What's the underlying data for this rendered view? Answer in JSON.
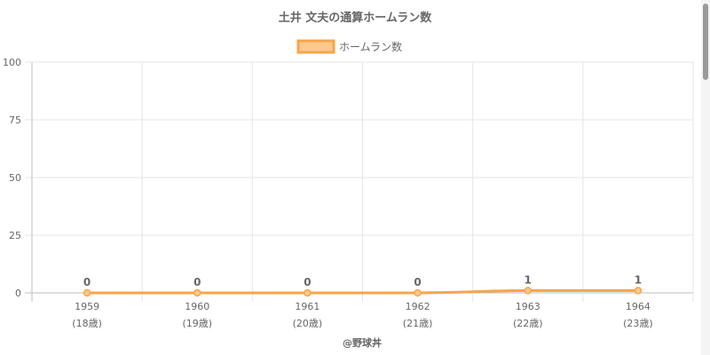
{
  "chart_data": {
    "type": "line",
    "title": "土井 文夫の通算ホームラン数",
    "legend": "ホームラン数",
    "legend_position": "top",
    "categories": [
      "1959",
      "1960",
      "1961",
      "1962",
      "1963",
      "1964"
    ],
    "sub_labels": [
      "(18歳)",
      "(19歳)",
      "(20歳)",
      "(21歳)",
      "(22歳)",
      "(23歳)"
    ],
    "series": [
      {
        "name": "ホームラン数",
        "values": [
          0,
          0,
          0,
          0,
          1,
          1
        ]
      }
    ],
    "ylim": [
      0,
      100
    ],
    "yticks": [
      0,
      25,
      50,
      75,
      100
    ],
    "grid": true,
    "colors": {
      "line": "#f7a54a",
      "fill": "#fbc98e",
      "grid": "#e6e6e6",
      "axis": "#bdbdbd"
    },
    "footer": "@野球丼"
  }
}
